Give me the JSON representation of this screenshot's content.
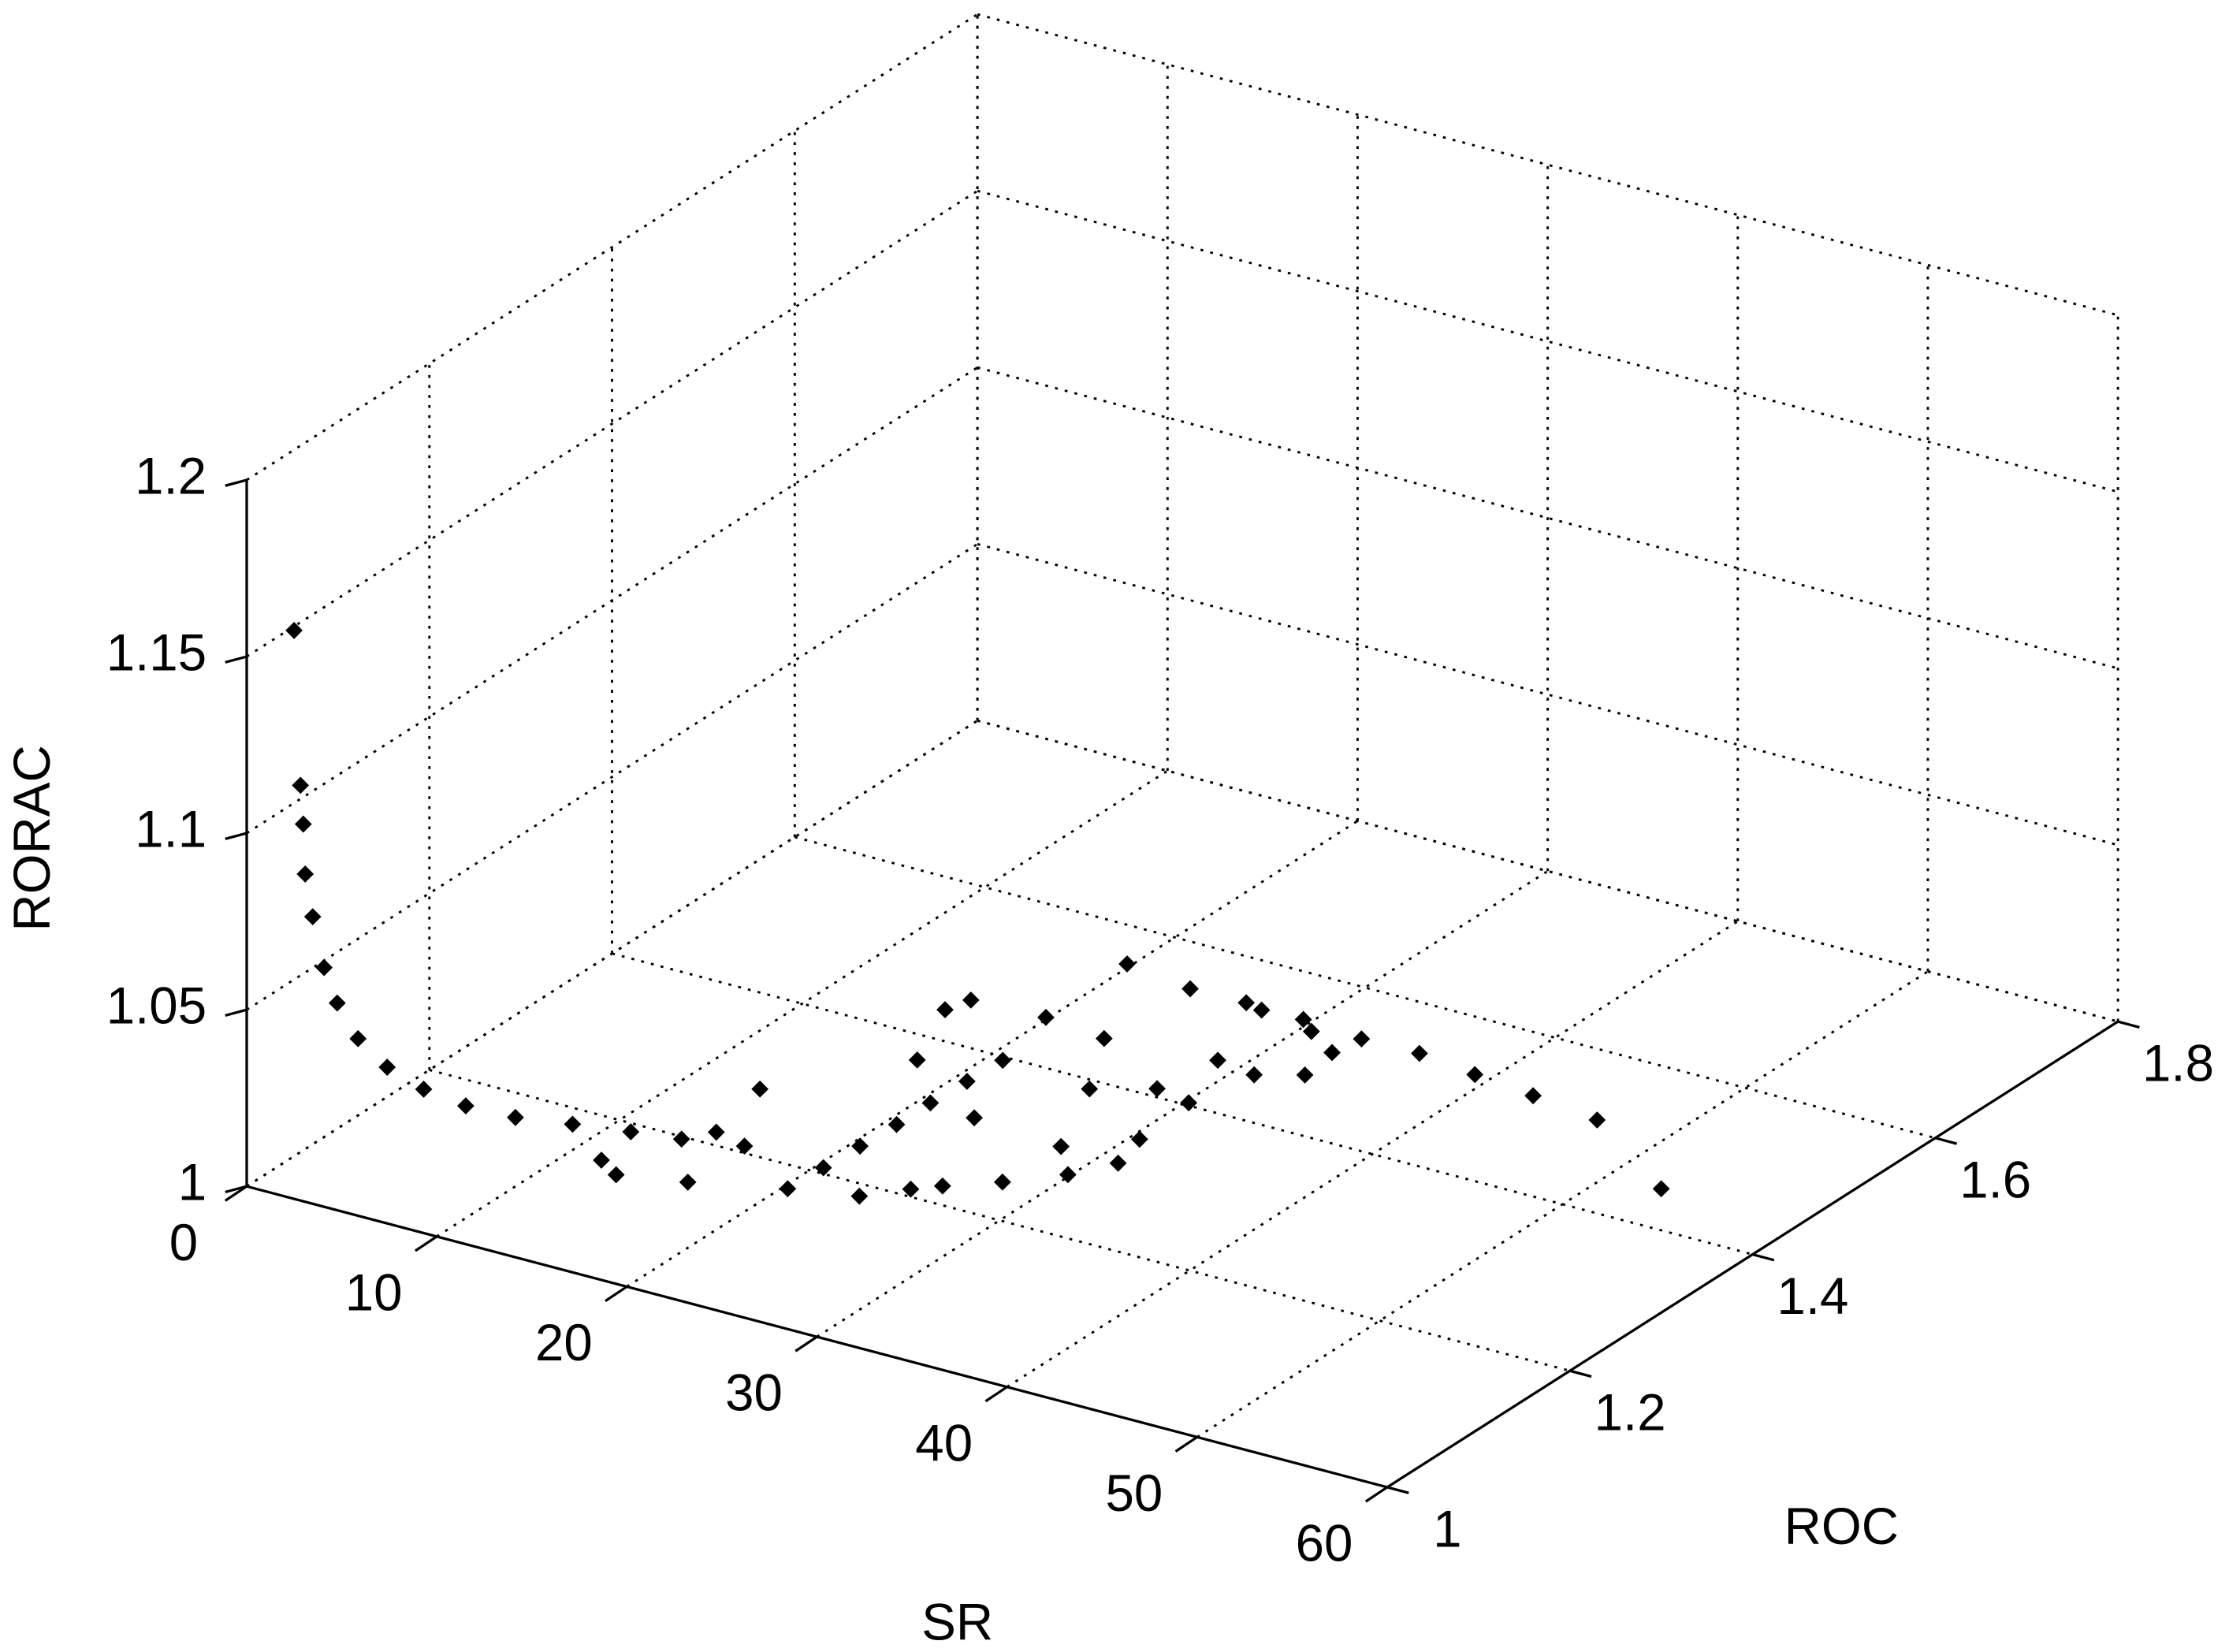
{
  "chart_data": {
    "type": "scatter3d",
    "xlabel": "SR",
    "ylabel": "ROC",
    "zlabel": "RORAC",
    "xlim": [
      0,
      60
    ],
    "ylim": [
      1,
      1.8
    ],
    "zlim": [
      1,
      1.2
    ],
    "xticks": [
      0,
      10,
      20,
      30,
      40,
      50,
      60
    ],
    "yticks": [
      1,
      1.2,
      1.4,
      1.6,
      1.8
    ],
    "zticks": [
      1,
      1.05,
      1.1,
      1.15,
      1.2
    ],
    "grid": true,
    "color": "#000000",
    "x": [
      2.3,
      2.3,
      2.4,
      2.5,
      2.8,
      3.3,
      3.8,
      4.8,
      5.9,
      7.1,
      8.4,
      10.1,
      12.0,
      14.2,
      16.1,
      12.7,
      14.1,
      17.2,
      17.4,
      17.2,
      19.6,
      21.3,
      21.4,
      21.5,
      21.6,
      21.6,
      21.7,
      21.8,
      20.9,
      24.4,
      25.9,
      26.9,
      28.9,
      18.6,
      16.7,
      17.1,
      24.1,
      29.0,
      30.9,
      26.7,
      24.3,
      20.8,
      32.1,
      31.5,
      29.2,
      24.6,
      31.2,
      29.8,
      32.0,
      28.5,
      33.9,
      33.6,
      31.6,
      27.5,
      30.6,
      33.9,
      36.9,
      40.2,
      43.6,
      47.4,
      53.8
    ],
    "y": [
      1.004,
      1.011,
      1.012,
      1.012,
      1.014,
      1.016,
      1.02,
      1.022,
      1.031,
      1.046,
      1.065,
      1.084,
      1.107,
      1.125,
      1.141,
      1.124,
      1.111,
      1.125,
      1.152,
      1.187,
      1.154,
      1.149,
      1.186,
      1.224,
      1.262,
      1.299,
      1.337,
      1.374,
      1.44,
      1.163,
      1.188,
      1.202,
      1.226,
      1.347,
      1.417,
      1.437,
      1.295,
      1.288,
      1.256,
      1.367,
      1.433,
      1.531,
      1.286,
      1.322,
      1.389,
      1.521,
      1.382,
      1.443,
      1.437,
      1.518,
      1.453,
      1.489,
      1.508,
      1.522,
      1.52,
      1.515,
      1.516,
      1.508,
      1.501,
      1.492,
      1.429
    ],
    "z": [
      1.16,
      1.115,
      1.104,
      1.09,
      1.078,
      1.064,
      1.054,
      1.045,
      1.037,
      1.03,
      1.024,
      1.02,
      1.017,
      1.015,
      1.013,
      1.005,
      1.005,
      1.005,
      1.015,
      1.005,
      1.03,
      1.005,
      1.005,
      1.005,
      1.005,
      1.005,
      1.005,
      1.005,
      1.005,
      1.005,
      1.005,
      1.005,
      1.005,
      1.005,
      1.005,
      1.005,
      1.005,
      1.005,
      1.005,
      1.005,
      1.005,
      1.005,
      1.005,
      1.005,
      1.005,
      1.005,
      1.005,
      1.005,
      1.005,
      1.005,
      1.005,
      1.005,
      1.005,
      1.005,
      1.005,
      1.005,
      1.005,
      1.005,
      1.005,
      1.005,
      1.005
    ]
  }
}
